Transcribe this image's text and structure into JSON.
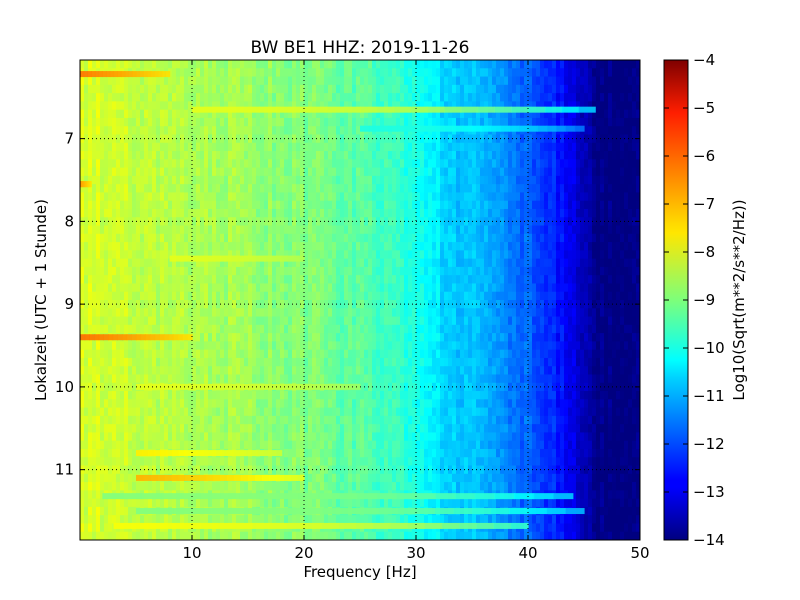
{
  "chart_data": {
    "type": "heatmap",
    "title": "BW BE1 HHZ: 2019-11-26",
    "xlabel": "Frequency [Hz]",
    "ylabel": "Lokalzeit (UTC + 1 Stunde)",
    "xlim": [
      0,
      50
    ],
    "ylim": [
      6.05,
      11.85
    ],
    "y_inverted": true,
    "x_ticks": [
      10,
      20,
      30,
      40,
      50
    ],
    "y_ticks": [
      7,
      8,
      9,
      10,
      11
    ],
    "grid": true,
    "colormap": "jet",
    "colorbar": {
      "label": "Log10(Sqrt(m**2/s**2/Hz))",
      "range": [
        -14,
        -4
      ],
      "ticks": [
        -4,
        -5,
        -6,
        -7,
        -8,
        -9,
        -10,
        -11,
        -12,
        -13,
        -14
      ]
    },
    "frequency_profile": {
      "frequency_hz": [
        0,
        2,
        5,
        10,
        15,
        20,
        25,
        28,
        30,
        31,
        32,
        35,
        38,
        40,
        42,
        44,
        45,
        46,
        50
      ],
      "log_amplitude": [
        -8.1,
        -8.2,
        -8.3,
        -8.5,
        -8.7,
        -9.0,
        -9.4,
        -9.7,
        -10.0,
        -10.2,
        -10.5,
        -10.9,
        -11.4,
        -11.8,
        -12.3,
        -13.0,
        -13.5,
        -13.9,
        -14.0
      ]
    },
    "bands": [
      {
        "time": 6.22,
        "f_start": 0,
        "f_end": 8,
        "log_amplitude": -6.4
      },
      {
        "time": 6.65,
        "f_start": 10,
        "f_end": 46,
        "log_amplitude": -8.0
      },
      {
        "time": 6.88,
        "f_start": 25,
        "f_end": 45,
        "log_amplitude": -10.0
      },
      {
        "time": 7.55,
        "f_start": 0,
        "f_end": 1,
        "log_amplitude": -6.8
      },
      {
        "time": 8.45,
        "f_start": 8,
        "f_end": 20,
        "log_amplitude": -8.0
      },
      {
        "time": 9.4,
        "f_start": 0,
        "f_end": 10,
        "log_amplitude": -6.3
      },
      {
        "time": 10.0,
        "f_start": 5,
        "f_end": 25,
        "log_amplitude": -8.0
      },
      {
        "time": 10.8,
        "f_start": 5,
        "f_end": 18,
        "log_amplitude": -7.6
      },
      {
        "time": 11.1,
        "f_start": 5,
        "f_end": 20,
        "log_amplitude": -7.0
      },
      {
        "time": 11.32,
        "f_start": 2,
        "f_end": 44,
        "log_amplitude": -9.0
      },
      {
        "time": 11.5,
        "f_start": 5,
        "f_end": 45,
        "log_amplitude": -9.0
      },
      {
        "time": 11.68,
        "f_start": 3,
        "f_end": 40,
        "log_amplitude": -7.8
      }
    ]
  }
}
